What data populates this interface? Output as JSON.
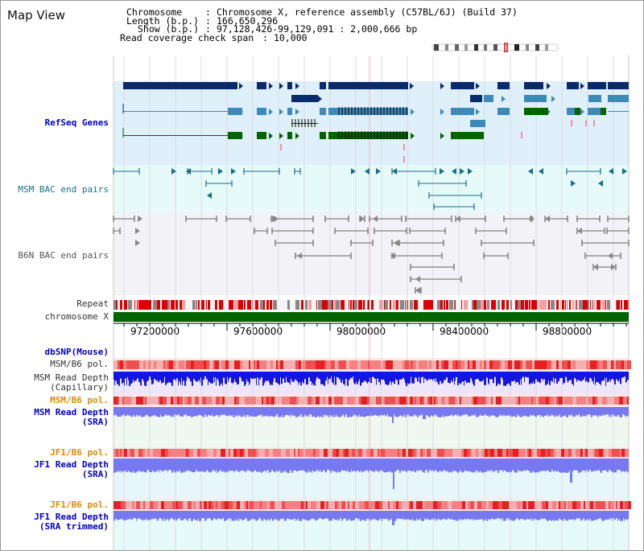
{
  "window": {
    "title": "Map View"
  },
  "info": {
    "chromosome_key": "Chromosome",
    "chromosome_val": "Chromosome X, reference assembly (C57BL/6J) (Build 37)",
    "length_key": "Length (b.p.)",
    "length_val": "166,650,296",
    "show_key": "Show (b.p.)",
    "show_val": "97,128,426-99,129,091 : 2,000,666 bp",
    "span_key": "Read coverage check span",
    "span_val": "10,000"
  },
  "tracks": {
    "refseq": "RefSeq Genes",
    "msm_bac": "MSM BAC end pairs",
    "b6n_bac": "B6N BAC end pairs",
    "repeat": "Repeat",
    "chromosome": "chromosome X",
    "dbsnp": "dbSNP(Mouse)",
    "msm_b6_pol": "MSM/B6 pol.",
    "msm_depth_cap": "MSM Read Depth\n(Capillary)",
    "msm_b6_pol2": "MSM/B6 pol.",
    "msm_depth_sra": "MSM Read Depth\n(SRA)",
    "jf1_b6_pol": "JF1/B6 pol.",
    "jf1_depth_sra": "JF1 Read Depth\n(SRA)",
    "jf1_b6_pol2": "JF1/B6 pol.",
    "jf1_depth_trim": "JF1 Read Depth\n(SRA trimmed)"
  },
  "axis": {
    "ticks": [
      "97200000",
      "97600000",
      "98000000",
      "98400000",
      "98800000"
    ]
  },
  "colors": {
    "gene_dark": "#0a2a6a",
    "gene_mid": "#3d8ab8",
    "gene_green": "#006400",
    "refseq_bg": "#dff0fa",
    "msm_bg": "#e6fafa",
    "b6n_bg": "#f2f2f7",
    "repeat_red": "#dd0000",
    "chrom_green": "#006400",
    "depth_blue": "#1515e0",
    "depth_light": "#7878f0",
    "pol_red": "#f05050"
  }
}
